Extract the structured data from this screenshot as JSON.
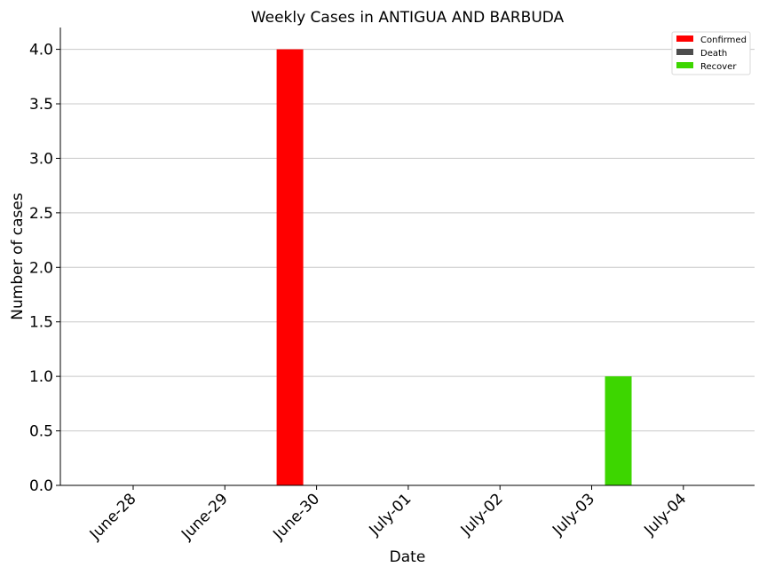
{
  "chart_data": {
    "type": "bar",
    "title": "Weekly Cases in ANTIGUA AND BARBUDA",
    "xlabel": "Date",
    "ylabel": "Number of cases",
    "categories": [
      "June-28",
      "June-29",
      "June-30",
      "July-01",
      "July-02",
      "July-03",
      "July-04"
    ],
    "series": [
      {
        "name": "Confirmed",
        "color": "#ff0000",
        "values": [
          0,
          0,
          4,
          0,
          0,
          0,
          0
        ]
      },
      {
        "name": "Death",
        "color": "#4d4d4d",
        "values": [
          0,
          0,
          0,
          0,
          0,
          0,
          0
        ]
      },
      {
        "name": "Recover",
        "color": "#3dd600",
        "values": [
          0,
          0,
          0,
          0,
          0,
          1,
          0
        ]
      }
    ],
    "ylim": [
      0,
      4.2
    ],
    "yticks": [
      "0.0",
      "0.5",
      "1.0",
      "1.5",
      "2.0",
      "2.5",
      "3.0",
      "3.5",
      "4.0"
    ],
    "grid": "horizontal",
    "legend_position": "top-right"
  }
}
